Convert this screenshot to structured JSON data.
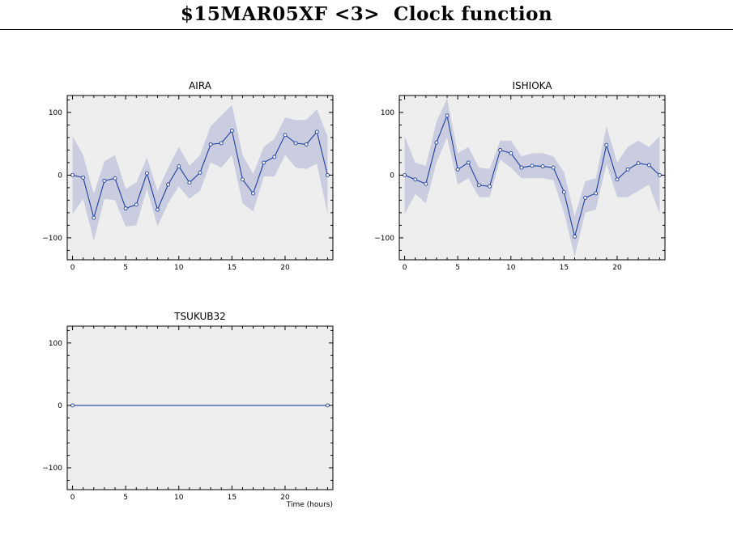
{
  "page": {
    "title": "$15MAR05XF <3>  Clock function"
  },
  "colors": {
    "plot_background": "#eeeeee",
    "band": "#c9cddf",
    "line": "#1f3f9f",
    "axis": "#000000"
  },
  "chart_data": [
    {
      "type": "line",
      "title": "AIRA",
      "xlabel": "",
      "ylabel": "",
      "xlim": [
        -0.5,
        24.5
      ],
      "ylim": [
        -135,
        127
      ],
      "xticks": [
        0,
        5,
        10,
        15,
        20
      ],
      "yticks": [
        -100,
        0,
        100
      ],
      "grid": false,
      "x": [
        0,
        1,
        2,
        3,
        4,
        5,
        6,
        7,
        8,
        9,
        10,
        11,
        12,
        13,
        14,
        15,
        16,
        17,
        18,
        19,
        20,
        21,
        22,
        23,
        24
      ],
      "values": [
        0,
        -4,
        -68,
        -9,
        -5,
        -53,
        -47,
        3,
        -55,
        -15,
        14,
        -12,
        4,
        49,
        51,
        71,
        -7,
        -29,
        20,
        29,
        64,
        51,
        49,
        69,
        0
      ],
      "band_upper": [
        62,
        32,
        -30,
        22,
        32,
        -22,
        -12,
        28,
        -25,
        12,
        45,
        15,
        32,
        78,
        95,
        112,
        32,
        2,
        45,
        58,
        92,
        88,
        88,
        105,
        62
      ],
      "band_lower": [
        -62,
        -38,
        -105,
        -38,
        -40,
        -82,
        -80,
        -22,
        -82,
        -45,
        -18,
        -38,
        -25,
        20,
        12,
        32,
        -45,
        -58,
        -2,
        -2,
        32,
        12,
        10,
        18,
        -62
      ]
    },
    {
      "type": "line",
      "title": "ISHIOKA",
      "xlabel": "",
      "ylabel": "",
      "xlim": [
        -0.5,
        24.5
      ],
      "ylim": [
        -135,
        127
      ],
      "xticks": [
        0,
        5,
        10,
        15,
        20
      ],
      "yticks": [
        -100,
        0,
        100
      ],
      "grid": false,
      "x": [
        0,
        1,
        2,
        3,
        4,
        5,
        6,
        7,
        8,
        9,
        10,
        11,
        12,
        13,
        14,
        15,
        16,
        17,
        18,
        19,
        20,
        21,
        22,
        23,
        24
      ],
      "values": [
        0,
        -7,
        -14,
        52,
        95,
        9,
        20,
        -16,
        -18,
        40,
        35,
        12,
        15,
        14,
        12,
        -27,
        -98,
        -36,
        -29,
        48,
        -7,
        9,
        19,
        16,
        0
      ],
      "band_upper": [
        62,
        20,
        15,
        85,
        122,
        35,
        45,
        12,
        10,
        55,
        55,
        30,
        35,
        35,
        30,
        5,
        -65,
        -10,
        -5,
        78,
        20,
        45,
        55,
        45,
        62
      ],
      "band_lower": [
        -62,
        -30,
        -45,
        20,
        60,
        -15,
        -5,
        -35,
        -35,
        25,
        12,
        -5,
        -5,
        -5,
        -8,
        -60,
        -130,
        -60,
        -55,
        18,
        -35,
        -35,
        -25,
        -15,
        -62
      ]
    },
    {
      "type": "line",
      "title": "TSUKUB32",
      "xlabel": "Time (hours)",
      "ylabel": "",
      "xlim": [
        -0.5,
        24.5
      ],
      "ylim": [
        -135,
        127
      ],
      "xticks": [
        0,
        5,
        10,
        15,
        20
      ],
      "yticks": [
        -100,
        0,
        100
      ],
      "grid": false,
      "x": [
        0,
        24
      ],
      "values": [
        0,
        0
      ],
      "band_upper": [
        0,
        0
      ],
      "band_lower": [
        0,
        0
      ]
    }
  ]
}
